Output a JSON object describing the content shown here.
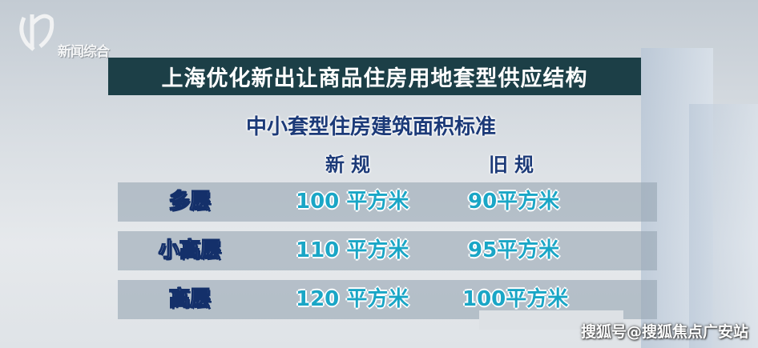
{
  "channel_logo": {
    "text": "新闻综合"
  },
  "title": "上海优化新出让商品住房用地套型供应结构",
  "subtitle": "中小套型住房建筑面积标准",
  "columns": [
    "新规",
    "旧规"
  ],
  "rows": [
    {
      "label": "多层",
      "new": "100 平方米",
      "old": "90平方米"
    },
    {
      "label": "小高层",
      "new": "110 平方米",
      "old": "95平方米"
    },
    {
      "label": "高层",
      "new": "120 平方米",
      "old": "100平方米"
    }
  ],
  "watermark": "搜狐号@搜狐焦点广安站",
  "colors": {
    "title_bar": "#1c3f47",
    "label_text": "#14306a",
    "value_text": "#1aa6c6"
  }
}
